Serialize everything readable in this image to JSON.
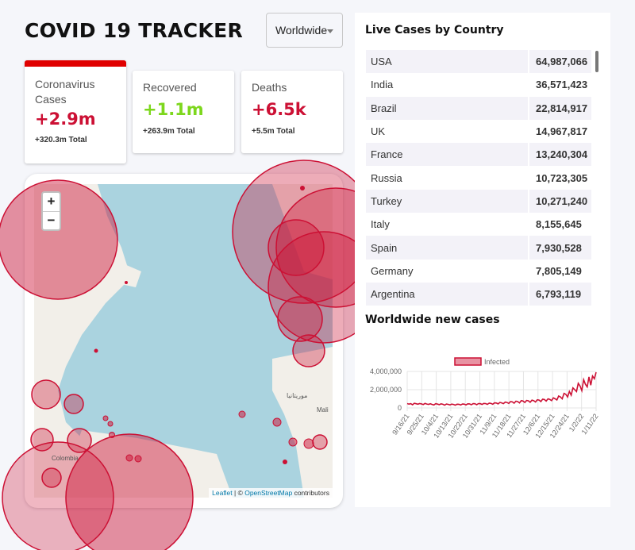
{
  "header": {
    "title": "COVID 19 TRACKER",
    "country_select": "Worldwide"
  },
  "cards": [
    {
      "label": "Coronavirus Cases",
      "new": "+2.9m",
      "total": "+320.3m Total",
      "active": true
    },
    {
      "label": "Recovered",
      "new": "+1.1m",
      "total": "+263.9m Total",
      "active": false
    },
    {
      "label": "Deaths",
      "new": "+6.5k",
      "total": "+5.5m Total",
      "active": false
    }
  ],
  "map": {
    "zoom_in": "+",
    "zoom_out": "−",
    "labels": {
      "colombia": "Colombia",
      "mali": "Mali",
      "mauritania": "موريتانيا"
    },
    "attribution": {
      "leaflet": "Leaflet",
      "sep": " | © ",
      "osm": "OpenStreetMap",
      "contrib": " contributors"
    },
    "colors": {
      "water": "#aad3df",
      "land": "#f2efe9",
      "circle_fill": "#cc1034",
      "circle_stroke": "#cc1034"
    }
  },
  "table": {
    "title": "Live Cases by Country",
    "rows": [
      {
        "country": "USA",
        "cases": "64,987,066"
      },
      {
        "country": "India",
        "cases": "36,571,423"
      },
      {
        "country": "Brazil",
        "cases": "22,814,917"
      },
      {
        "country": "UK",
        "cases": "14,967,817"
      },
      {
        "country": "France",
        "cases": "13,240,304"
      },
      {
        "country": "Russia",
        "cases": "10,723,305"
      },
      {
        "country": "Turkey",
        "cases": "10,271,240"
      },
      {
        "country": "Italy",
        "cases": "8,155,645"
      },
      {
        "country": "Spain",
        "cases": "7,930,528"
      },
      {
        "country": "Germany",
        "cases": "7,805,149"
      },
      {
        "country": "Argentina",
        "cases": "6,793,119"
      }
    ]
  },
  "chart_title": "Worldwide new cases",
  "chart_data": {
    "type": "line",
    "legend": "Infected",
    "legend_position": "top-center",
    "ylim": [
      0,
      4000000
    ],
    "y_ticks": [
      0,
      2000000,
      4000000
    ],
    "y_tick_labels": [
      "0",
      "2,000,000",
      "4,000,000"
    ],
    "x_tick_labels": [
      "9/16/21",
      "9/25/21",
      "10/4/21",
      "10/13/21",
      "10/22/21",
      "10/31/21",
      "11/9/21",
      "11/18/21",
      "11/27/21",
      "12/6/21",
      "12/15/21",
      "12/24/21",
      "1/2/22",
      "1/11/22"
    ],
    "series": [
      {
        "name": "Infected",
        "color": "#cc1034",
        "values": [
          480000,
          420000,
          470000,
          350000,
          510000,
          460000,
          410000,
          480000,
          440000,
          370000,
          500000,
          430000,
          390000,
          460000,
          380000,
          320000,
          470000,
          420000,
          360000,
          440000,
          400000,
          300000,
          430000,
          390000,
          330000,
          420000,
          380000,
          300000,
          410000,
          400000,
          320000,
          430000,
          420000,
          330000,
          450000,
          440000,
          350000,
          470000,
          460000,
          360000,
          480000,
          470000,
          380000,
          500000,
          480000,
          390000,
          520000,
          500000,
          410000,
          560000,
          540000,
          440000,
          600000,
          560000,
          470000,
          640000,
          600000,
          500000,
          700000,
          660000,
          520000,
          740000,
          700000,
          560000,
          800000,
          760000,
          600000,
          820000,
          780000,
          620000,
          850000,
          800000,
          650000,
          900000,
          860000,
          700000,
          960000,
          920000,
          760000,
          1000000,
          940000,
          800000,
          1100000,
          1000000,
          880000,
          1300000,
          1200000,
          1000000,
          1600000,
          1500000,
          1200000,
          1800000,
          1400000,
          2200000,
          2000000,
          1800000,
          2700000,
          2400000,
          1900000,
          3100000,
          2600000,
          2300000,
          3400000,
          2500000,
          3500000,
          3200000,
          3900000
        ]
      }
    ]
  }
}
